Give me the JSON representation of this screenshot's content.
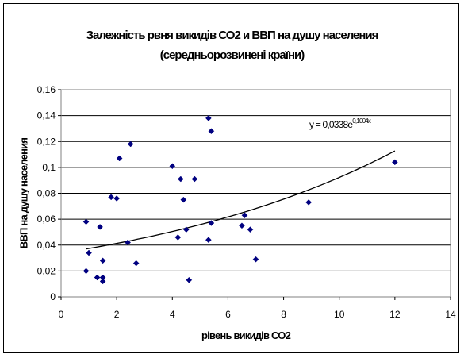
{
  "chart_data": {
    "type": "scatter",
    "title": "Залежність рвня викидів СО2 и ВВП на душу населения",
    "subtitle": "(середньорозвинені країни)",
    "xlabel": "рівень викидів СО2",
    "ylabel": "ВВП на душу населения",
    "xlim": [
      0,
      14
    ],
    "ylim": [
      0,
      0.16
    ],
    "x_ticks": [
      "0",
      "2",
      "4",
      "6",
      "8",
      "10",
      "12",
      "14"
    ],
    "y_ticks": [
      "0",
      "0,02",
      "0,04",
      "0,06",
      "0,08",
      "0,1",
      "0,12",
      "0,14",
      "0,16"
    ],
    "grid": "horizontal",
    "marker": "diamond",
    "marker_color": "#000080",
    "points": [
      {
        "x": 0.9,
        "y": 0.058
      },
      {
        "x": 0.9,
        "y": 0.02
      },
      {
        "x": 1.0,
        "y": 0.034
      },
      {
        "x": 1.3,
        "y": 0.015
      },
      {
        "x": 1.4,
        "y": 0.054
      },
      {
        "x": 1.5,
        "y": 0.028
      },
      {
        "x": 1.5,
        "y": 0.015
      },
      {
        "x": 1.5,
        "y": 0.012
      },
      {
        "x": 1.8,
        "y": 0.077
      },
      {
        "x": 2.0,
        "y": 0.076
      },
      {
        "x": 2.1,
        "y": 0.107
      },
      {
        "x": 2.4,
        "y": 0.042
      },
      {
        "x": 2.5,
        "y": 0.118
      },
      {
        "x": 2.7,
        "y": 0.026
      },
      {
        "x": 4.0,
        "y": 0.101
      },
      {
        "x": 4.2,
        "y": 0.046
      },
      {
        "x": 4.3,
        "y": 0.091
      },
      {
        "x": 4.4,
        "y": 0.075
      },
      {
        "x": 4.5,
        "y": 0.052
      },
      {
        "x": 4.6,
        "y": 0.013
      },
      {
        "x": 4.8,
        "y": 0.091
      },
      {
        "x": 5.3,
        "y": 0.138
      },
      {
        "x": 5.3,
        "y": 0.044
      },
      {
        "x": 5.4,
        "y": 0.128
      },
      {
        "x": 5.4,
        "y": 0.057
      },
      {
        "x": 6.5,
        "y": 0.055
      },
      {
        "x": 6.6,
        "y": 0.063
      },
      {
        "x": 6.8,
        "y": 0.052
      },
      {
        "x": 7.0,
        "y": 0.029
      },
      {
        "x": 8.9,
        "y": 0.073
      },
      {
        "x": 12.0,
        "y": 0.104
      }
    ],
    "trendline": {
      "type": "exponential",
      "coefficient": 0.0338,
      "rate": 0.1004,
      "x_range": [
        0.9,
        12.0
      ],
      "equation_base": "y = 0,0338e",
      "equation_exponent": "0,1004x"
    }
  }
}
